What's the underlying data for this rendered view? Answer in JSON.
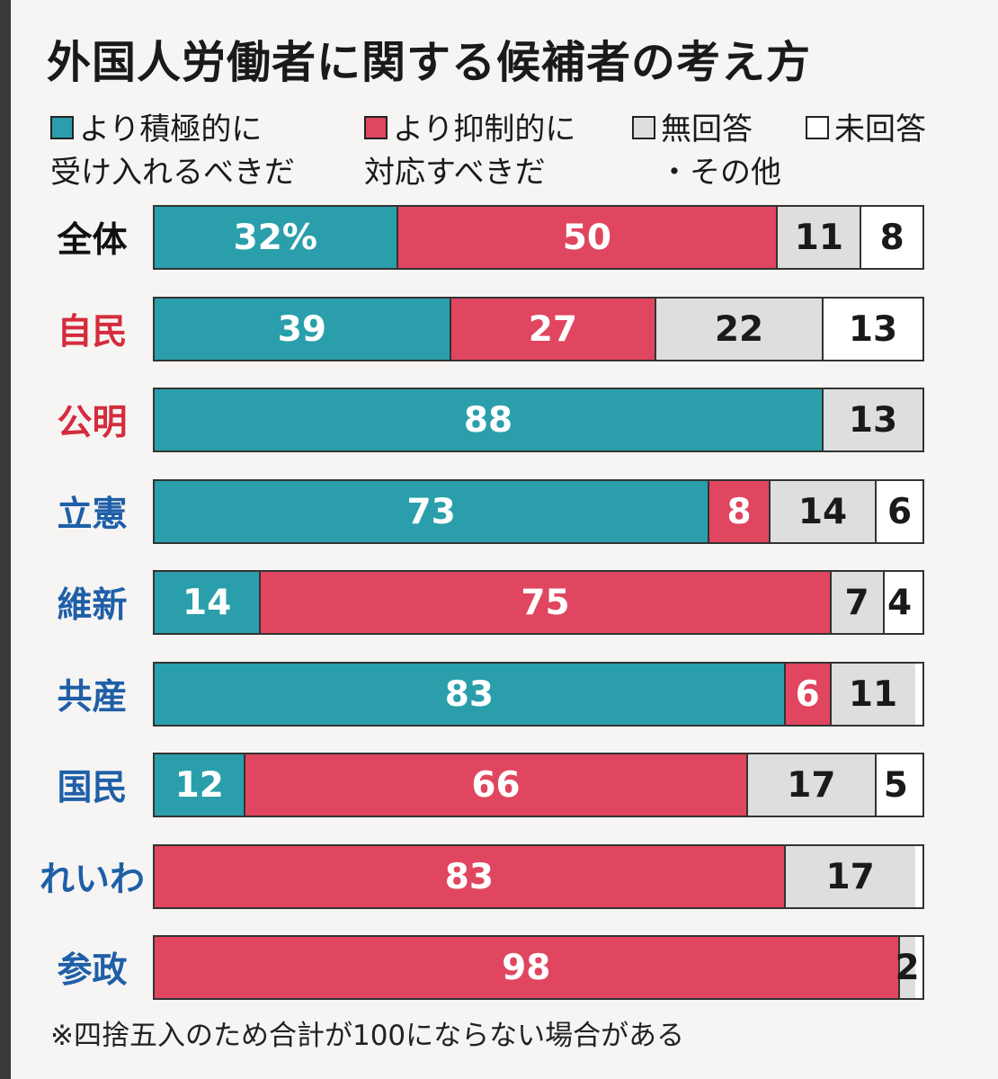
{
  "title": "外国人労働者に関する候補者の考え方",
  "legend": [
    {
      "line1": "より積極的に",
      "line2": "受け入れるべきだ",
      "color": "#2a9fab"
    },
    {
      "line1": "より抑制的に",
      "line2": "対応すべきだ",
      "color": "#e0465f"
    },
    {
      "line1": "無回答",
      "line2": "・その他",
      "color": "#dedede"
    },
    {
      "line1": "未回答",
      "line2": "",
      "color": "#ffffff"
    }
  ],
  "footnote": "※四捨五入のため合計が100にならない場合がある",
  "chart_data": {
    "type": "bar",
    "orientation": "horizontal",
    "stacked": true,
    "title": "外国人労働者に関する候補者の考え方",
    "categories": [
      "全体",
      "自民",
      "公明",
      "立憲",
      "維新",
      "共産",
      "国民",
      "れいわ",
      "参政"
    ],
    "category_colors": [
      "#111111",
      "#d62b3e",
      "#d62b3e",
      "#1f5fa8",
      "#1f5fa8",
      "#1f5fa8",
      "#1f5fa8",
      "#1f5fa8",
      "#1f5fa8"
    ],
    "series": [
      {
        "name": "より積極的に受け入れるべきだ",
        "color": "#2a9fab",
        "text_color": "#ffffff",
        "values": [
          32,
          39,
          88,
          73,
          14,
          83,
          12,
          0,
          0
        ]
      },
      {
        "name": "より抑制的に対応すべきだ",
        "color": "#e0465f",
        "text_color": "#ffffff",
        "values": [
          50,
          27,
          0,
          8,
          75,
          6,
          66,
          83,
          98
        ]
      },
      {
        "name": "無回答・その他",
        "color": "#dedede",
        "text_color": "#1a1a1a",
        "values": [
          11,
          22,
          13,
          14,
          7,
          11,
          17,
          17,
          2
        ]
      },
      {
        "name": "未回答",
        "color": "#ffffff",
        "text_color": "#1a1a1a",
        "values": [
          8,
          13,
          0,
          6,
          4,
          0,
          5,
          0,
          0
        ]
      }
    ],
    "labels": [
      [
        "32%",
        "50",
        "11",
        "8"
      ],
      [
        "39",
        "27",
        "22",
        "13"
      ],
      [
        "88",
        "",
        "13",
        ""
      ],
      [
        "73",
        "8",
        "14",
        "6"
      ],
      [
        "14",
        "75",
        "7",
        "4"
      ],
      [
        "83",
        "6",
        "11",
        ""
      ],
      [
        "12",
        "66",
        "17",
        "5"
      ],
      [
        "",
        "83",
        "17",
        ""
      ],
      [
        "",
        "98",
        "2",
        ""
      ]
    ],
    "xlim": [
      0,
      101
    ]
  }
}
